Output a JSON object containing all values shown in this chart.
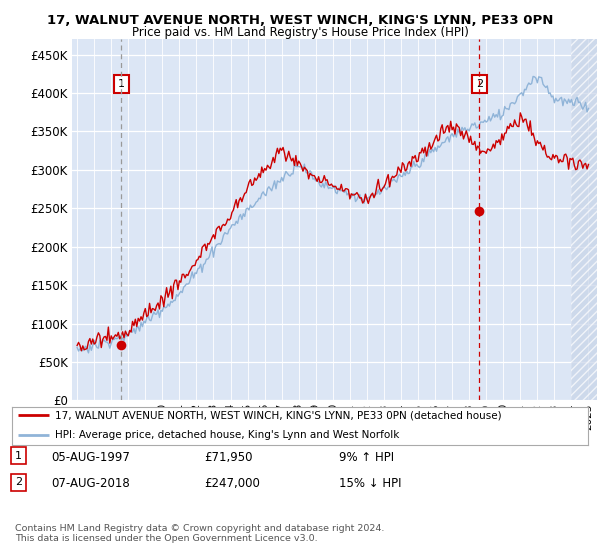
{
  "title_line1": "17, WALNUT AVENUE NORTH, WEST WINCH, KING'S LYNN, PE33 0PN",
  "title_line2": "Price paid vs. HM Land Registry's House Price Index (HPI)",
  "ylabel_ticks": [
    "£0",
    "£50K",
    "£100K",
    "£150K",
    "£200K",
    "£250K",
    "£300K",
    "£350K",
    "£400K",
    "£450K"
  ],
  "ytick_values": [
    0,
    50000,
    100000,
    150000,
    200000,
    250000,
    300000,
    350000,
    400000,
    450000
  ],
  "xlim_start": 1994.7,
  "xlim_end": 2025.5,
  "ylim": [
    0,
    470000
  ],
  "marker1_x": 1997.6,
  "marker1_y": 71950,
  "marker1_label": "1",
  "marker1_date": "05-AUG-1997",
  "marker1_price": "£71,950",
  "marker1_hpi": "9% ↑ HPI",
  "marker2_x": 2018.6,
  "marker2_y": 247000,
  "marker2_label": "2",
  "marker2_date": "07-AUG-2018",
  "marker2_price": "£247,000",
  "marker2_hpi": "15% ↓ HPI",
  "legend_line1": "17, WALNUT AVENUE NORTH, WEST WINCH, KING'S LYNN, PE33 0PN (detached house)",
  "legend_line2": "HPI: Average price, detached house, King's Lynn and West Norfolk",
  "footer": "Contains HM Land Registry data © Crown copyright and database right 2024.\nThis data is licensed under the Open Government Licence v3.0.",
  "hpi_color": "#90b4d8",
  "price_color": "#cc0000",
  "vline1_color": "#999999",
  "vline2_color": "#cc0000",
  "bg_color": "#dce6f5",
  "grid_color": "#ffffff",
  "hatch_color": "#c8d4e8"
}
